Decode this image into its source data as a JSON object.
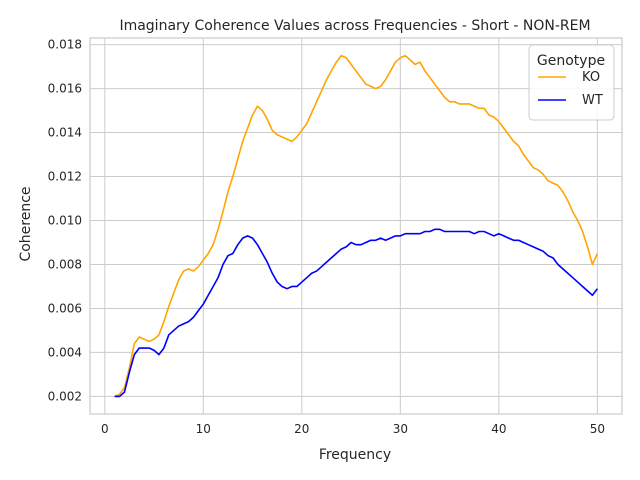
{
  "chart_data": {
    "type": "line",
    "title": "Imaginary Coherence Values across Frequencies - Short - NON-REM",
    "xlabel": "Frequency",
    "ylabel": "Coherence",
    "xlim": [
      -1.5,
      52.5
    ],
    "ylim": [
      0.0012,
      0.0183
    ],
    "xticks": [
      0,
      10,
      20,
      30,
      40,
      50
    ],
    "yticks": [
      0.002,
      0.004,
      0.006,
      0.008,
      0.01,
      0.012,
      0.014,
      0.016,
      0.018
    ],
    "xtick_labels": [
      "0",
      "10",
      "20",
      "30",
      "40",
      "50"
    ],
    "ytick_labels": [
      "0.002",
      "0.004",
      "0.006",
      "0.008",
      "0.010",
      "0.012",
      "0.014",
      "0.016",
      "0.018"
    ],
    "grid": true,
    "legend": {
      "title": "Genotype",
      "placement": "top-right"
    },
    "series": [
      {
        "name": "KO",
        "color": "#FFA500",
        "points": [
          [
            1,
            0.002
          ],
          [
            1.5,
            0.0021
          ],
          [
            2,
            0.0024
          ],
          [
            2.5,
            0.0033
          ],
          [
            3,
            0.0044
          ],
          [
            3.5,
            0.0047
          ],
          [
            4,
            0.0046
          ],
          [
            4.5,
            0.0045
          ],
          [
            5,
            0.0046
          ],
          [
            5.5,
            0.0048
          ],
          [
            6,
            0.0054
          ],
          [
            6.5,
            0.0061
          ],
          [
            7,
            0.0067
          ],
          [
            7.5,
            0.0073
          ],
          [
            8,
            0.0077
          ],
          [
            8.5,
            0.0078
          ],
          [
            9,
            0.0077
          ],
          [
            9.5,
            0.0079
          ],
          [
            10,
            0.0082
          ],
          [
            10.5,
            0.0085
          ],
          [
            11,
            0.0089
          ],
          [
            11.5,
            0.0096
          ],
          [
            12,
            0.0104
          ],
          [
            12.5,
            0.0113
          ],
          [
            13,
            0.012
          ],
          [
            13.5,
            0.0128
          ],
          [
            14,
            0.0136
          ],
          [
            14.5,
            0.0142
          ],
          [
            15,
            0.0148
          ],
          [
            15.5,
            0.0152
          ],
          [
            16,
            0.015
          ],
          [
            16.5,
            0.0146
          ],
          [
            17,
            0.0141
          ],
          [
            17.5,
            0.0139
          ],
          [
            18,
            0.0138
          ],
          [
            18.5,
            0.0137
          ],
          [
            19,
            0.0136
          ],
          [
            19.5,
            0.0138
          ],
          [
            20,
            0.0141
          ],
          [
            20.5,
            0.0144
          ],
          [
            21,
            0.0149
          ],
          [
            21.5,
            0.0154
          ],
          [
            22,
            0.0159
          ],
          [
            22.5,
            0.0164
          ],
          [
            23,
            0.0168
          ],
          [
            23.5,
            0.0172
          ],
          [
            24,
            0.0175
          ],
          [
            24.5,
            0.0174
          ],
          [
            25,
            0.0171
          ],
          [
            25.5,
            0.0168
          ],
          [
            26,
            0.0165
          ],
          [
            26.5,
            0.0162
          ],
          [
            27,
            0.0161
          ],
          [
            27.5,
            0.016
          ],
          [
            28,
            0.0161
          ],
          [
            28.5,
            0.0164
          ],
          [
            29,
            0.0168
          ],
          [
            29.5,
            0.0172
          ],
          [
            30,
            0.0174
          ],
          [
            30.5,
            0.0175
          ],
          [
            31,
            0.0173
          ],
          [
            31.5,
            0.0171
          ],
          [
            32,
            0.0172
          ],
          [
            32.5,
            0.0168
          ],
          [
            33,
            0.0165
          ],
          [
            33.5,
            0.0162
          ],
          [
            34,
            0.0159
          ],
          [
            34.5,
            0.0156
          ],
          [
            35,
            0.0154
          ],
          [
            35.5,
            0.0154
          ],
          [
            36,
            0.0153
          ],
          [
            36.5,
            0.0153
          ],
          [
            37,
            0.0153
          ],
          [
            37.5,
            0.0152
          ],
          [
            38,
            0.0151
          ],
          [
            38.5,
            0.0151
          ],
          [
            39,
            0.0148
          ],
          [
            39.5,
            0.0147
          ],
          [
            40,
            0.0145
          ],
          [
            40.5,
            0.0142
          ],
          [
            41,
            0.0139
          ],
          [
            41.5,
            0.0136
          ],
          [
            42,
            0.0134
          ],
          [
            42.5,
            0.013
          ],
          [
            43,
            0.0127
          ],
          [
            43.5,
            0.0124
          ],
          [
            44,
            0.0123
          ],
          [
            44.5,
            0.0121
          ],
          [
            45,
            0.0118
          ],
          [
            45.5,
            0.0117
          ],
          [
            46,
            0.0116
          ],
          [
            46.5,
            0.0113
          ],
          [
            47,
            0.0109
          ],
          [
            47.5,
            0.0104
          ],
          [
            48,
            0.01
          ],
          [
            48.5,
            0.0095
          ],
          [
            49,
            0.0088
          ],
          [
            49.5,
            0.008
          ],
          [
            50,
            0.0085
          ]
        ]
      },
      {
        "name": "WT",
        "color": "#0000FF",
        "points": [
          [
            1,
            0.002
          ],
          [
            1.5,
            0.002
          ],
          [
            2,
            0.0022
          ],
          [
            2.5,
            0.0031
          ],
          [
            3,
            0.0039
          ],
          [
            3.5,
            0.0042
          ],
          [
            4,
            0.0042
          ],
          [
            4.5,
            0.0042
          ],
          [
            5,
            0.0041
          ],
          [
            5.5,
            0.0039
          ],
          [
            6,
            0.0042
          ],
          [
            6.5,
            0.0048
          ],
          [
            7,
            0.005
          ],
          [
            7.5,
            0.0052
          ],
          [
            8,
            0.0053
          ],
          [
            8.5,
            0.0054
          ],
          [
            9,
            0.0056
          ],
          [
            9.5,
            0.0059
          ],
          [
            10,
            0.0062
          ],
          [
            10.5,
            0.0066
          ],
          [
            11,
            0.007
          ],
          [
            11.5,
            0.0074
          ],
          [
            12,
            0.008
          ],
          [
            12.5,
            0.0084
          ],
          [
            13,
            0.0085
          ],
          [
            13.5,
            0.0089
          ],
          [
            14,
            0.0092
          ],
          [
            14.5,
            0.0093
          ],
          [
            15,
            0.0092
          ],
          [
            15.5,
            0.0089
          ],
          [
            16,
            0.0085
          ],
          [
            16.5,
            0.0081
          ],
          [
            17,
            0.0076
          ],
          [
            17.5,
            0.0072
          ],
          [
            18,
            0.007
          ],
          [
            18.5,
            0.0069
          ],
          [
            19,
            0.007
          ],
          [
            19.5,
            0.007
          ],
          [
            20,
            0.0072
          ],
          [
            20.5,
            0.0074
          ],
          [
            21,
            0.0076
          ],
          [
            21.5,
            0.0077
          ],
          [
            22,
            0.0079
          ],
          [
            22.5,
            0.0081
          ],
          [
            23,
            0.0083
          ],
          [
            23.5,
            0.0085
          ],
          [
            24,
            0.0087
          ],
          [
            24.5,
            0.0088
          ],
          [
            25,
            0.009
          ],
          [
            25.5,
            0.0089
          ],
          [
            26,
            0.0089
          ],
          [
            26.5,
            0.009
          ],
          [
            27,
            0.0091
          ],
          [
            27.5,
            0.0091
          ],
          [
            28,
            0.0092
          ],
          [
            28.5,
            0.0091
          ],
          [
            29,
            0.0092
          ],
          [
            29.5,
            0.0093
          ],
          [
            30,
            0.0093
          ],
          [
            30.5,
            0.0094
          ],
          [
            31,
            0.0094
          ],
          [
            31.5,
            0.0094
          ],
          [
            32,
            0.0094
          ],
          [
            32.5,
            0.0095
          ],
          [
            33,
            0.0095
          ],
          [
            33.5,
            0.0096
          ],
          [
            34,
            0.0096
          ],
          [
            34.5,
            0.0095
          ],
          [
            35,
            0.0095
          ],
          [
            35.5,
            0.0095
          ],
          [
            36,
            0.0095
          ],
          [
            36.5,
            0.0095
          ],
          [
            37,
            0.0095
          ],
          [
            37.5,
            0.0094
          ],
          [
            38,
            0.0095
          ],
          [
            38.5,
            0.0095
          ],
          [
            39,
            0.0094
          ],
          [
            39.5,
            0.0093
          ],
          [
            40,
            0.0094
          ],
          [
            40.5,
            0.0093
          ],
          [
            41,
            0.0092
          ],
          [
            41.5,
            0.0091
          ],
          [
            42,
            0.0091
          ],
          [
            42.5,
            0.009
          ],
          [
            43,
            0.0089
          ],
          [
            43.5,
            0.0088
          ],
          [
            44,
            0.0087
          ],
          [
            44.5,
            0.0086
          ],
          [
            45,
            0.0084
          ],
          [
            45.5,
            0.0083
          ],
          [
            46,
            0.008
          ],
          [
            46.5,
            0.0078
          ],
          [
            47,
            0.0076
          ],
          [
            47.5,
            0.0074
          ],
          [
            48,
            0.0072
          ],
          [
            48.5,
            0.007
          ],
          [
            49,
            0.0068
          ],
          [
            49.5,
            0.0066
          ],
          [
            50,
            0.0069
          ]
        ]
      }
    ]
  }
}
